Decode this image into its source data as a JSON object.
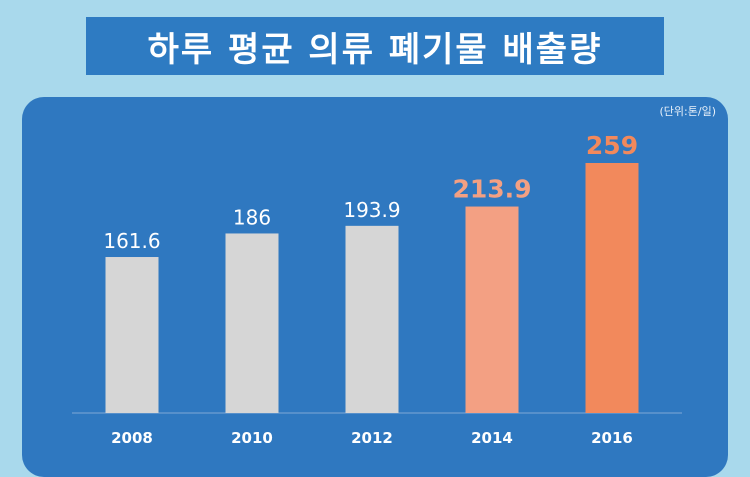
{
  "title": "하루 평균 의류 폐기물 배출량",
  "unit_label": "(단위:톤/일)",
  "colors": {
    "page_bg": "#a9d9ec",
    "panel_bg": "#2f78c0",
    "title_bg": "#2e7bc2",
    "bar_default": "#d6d6d6",
    "bar_highlight_light": "#f3a083",
    "bar_highlight": "#f2895c",
    "label_default": "#ffffff",
    "label_highlight": "#f2895c"
  },
  "chart_data": {
    "type": "bar",
    "title": "하루 평균 의류 폐기물 배출량",
    "xlabel": "",
    "ylabel": "",
    "unit": "(단위:톤/일)",
    "categories": [
      "2008",
      "2010",
      "2012",
      "2014",
      "2016"
    ],
    "values": [
      161.6,
      186,
      193.9,
      213.9,
      259
    ],
    "value_labels": [
      "161.6",
      "186",
      "193.9",
      "213.9",
      "259"
    ],
    "highlight": [
      "none",
      "none",
      "none",
      "light",
      "strong"
    ],
    "ylim": [
      0,
      259
    ],
    "grid": false,
    "legend": "none"
  }
}
